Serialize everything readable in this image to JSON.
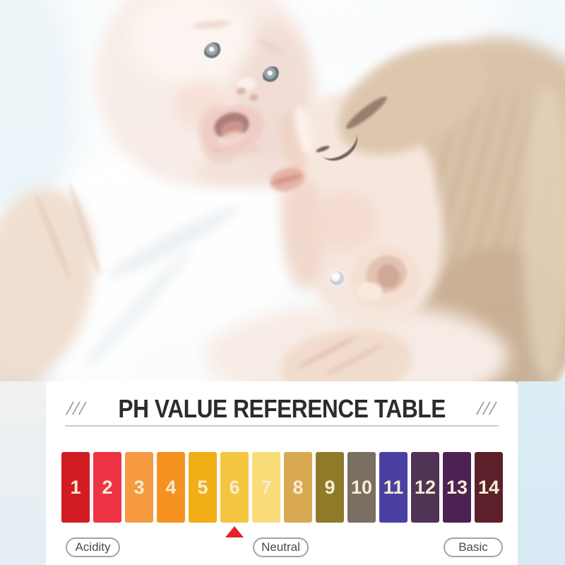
{
  "photo": {
    "description": "Mother kissing a baby on the cheek"
  },
  "decor": {
    "left_slashes": "///",
    "right_slashes": "///"
  },
  "colors": {
    "panel_bg": "#ffffff",
    "page_bg_blue": "#ddedf6",
    "title_text": "#2c2c2c",
    "divider": "#cbcbcb",
    "slashes": "#9c9c9c",
    "pointer_red": "#e5202a",
    "pill_border": "#a3a3a3",
    "pill_text": "#4a4a4a",
    "swatch_number_text": "#f8ecd2"
  },
  "chart_data": {
    "type": "table",
    "title": "PH VALUE REFERENCE TABLE",
    "categories": [
      "1",
      "2",
      "3",
      "4",
      "5",
      "6",
      "7",
      "8",
      "9",
      "10",
      "11",
      "12",
      "13",
      "14"
    ],
    "swatch_colors": [
      "#d21c24",
      "#ee3344",
      "#f59a40",
      "#f6921f",
      "#f1ae15",
      "#f4c53e",
      "#f8dc78",
      "#d9a952",
      "#8f7a2a",
      "#7b6f63",
      "#4940a2",
      "#503455",
      "#4c2254",
      "#5b202a"
    ],
    "pointer_value": 6,
    "zone_labels": [
      {
        "label": "Acidity",
        "position": "left"
      },
      {
        "label": "Neutral",
        "position": "center"
      },
      {
        "label": "Basic",
        "position": "right"
      }
    ]
  }
}
